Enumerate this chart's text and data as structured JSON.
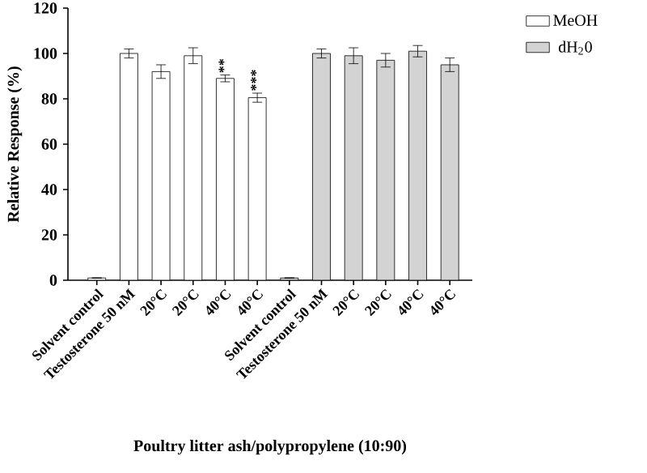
{
  "chart_data": {
    "type": "bar",
    "xlabel": "Poultry litter ash/polypropylene (10:90)",
    "ylabel": "Relative Response (%)",
    "categories": [
      "Solvent control",
      "Testosterone 50 nM",
      "20°C",
      "20°C",
      "40°C",
      "40°C",
      "Solvent control",
      "Testosterone 50 nM",
      "20°C",
      "20°C",
      "40°C",
      "40°C"
    ],
    "series": [
      {
        "name": "MeOH",
        "color": "#ffffff",
        "values": [
          1,
          100,
          92,
          99,
          89,
          80.5,
          null,
          null,
          null,
          null,
          null,
          null
        ],
        "errors": [
          null,
          2,
          3,
          3.5,
          1.5,
          2,
          null,
          null,
          null,
          null,
          null,
          null
        ]
      },
      {
        "name": "dH$_{2}$0",
        "color": "#d3d3d3",
        "values": [
          null,
          null,
          null,
          null,
          null,
          null,
          1,
          100,
          99,
          97,
          101,
          95
        ],
        "errors": [
          null,
          null,
          null,
          null,
          null,
          null,
          null,
          2,
          3.5,
          3,
          2.5,
          3
        ]
      }
    ],
    "ylim": [
      0,
      120
    ],
    "yticks": [
      0,
      20,
      40,
      60,
      80,
      100,
      120
    ],
    "legend": "top right",
    "annotations": [
      {
        "text": "**",
        "x": "40°C",
        "y": 90.5
      },
      "***"
    ]
  }
}
